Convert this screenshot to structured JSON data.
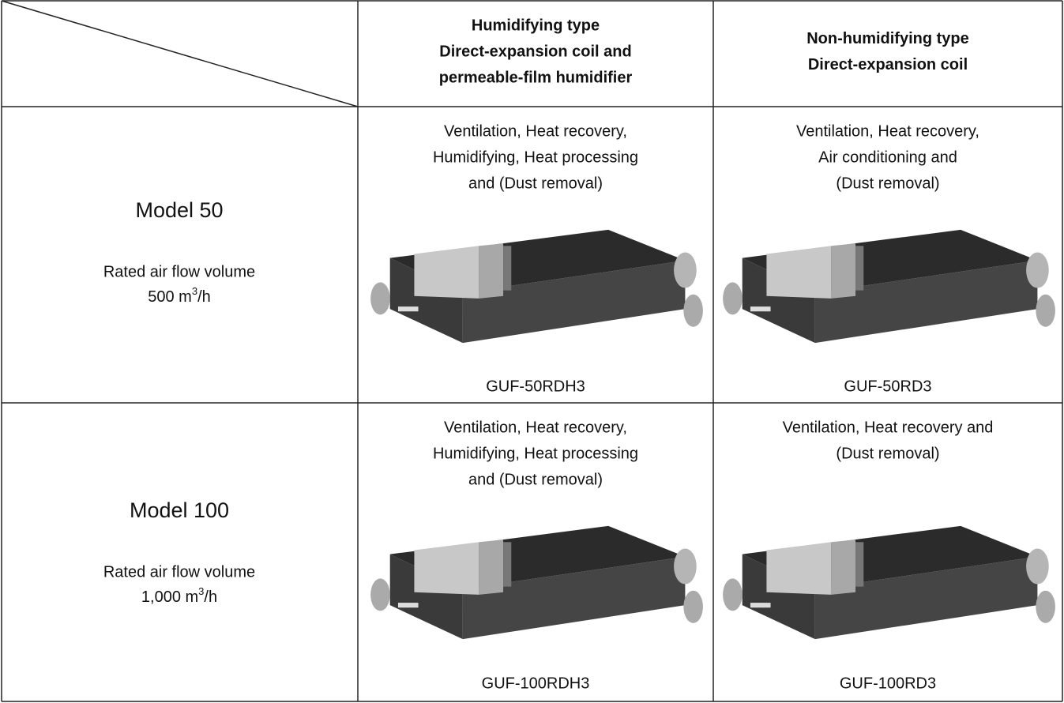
{
  "header": {
    "columns": [
      {
        "lines": [
          "Humidifying type",
          "Direct-expansion coil and",
          "permeable-film humidifier"
        ]
      },
      {
        "lines": [
          "Non-humidifying type",
          "Direct-expansion coil"
        ]
      }
    ]
  },
  "rows": [
    {
      "model": "Model 50",
      "flow_label": "Rated air flow volume",
      "flow": {
        "number": "500 m",
        "sup": "3",
        "unit": "/h"
      },
      "cells": [
        {
          "lines": [
            "Ventilation, Heat recovery,",
            "Humidifying, Heat processing",
            "and (Dust removal)"
          ],
          "product": "GUF-50RDH3"
        },
        {
          "lines": [
            "Ventilation, Heat recovery,",
            "Air conditioning and",
            "(Dust removal)"
          ],
          "product": "GUF-50RD3"
        }
      ]
    },
    {
      "model": "Model 100",
      "flow_label": "Rated air flow volume",
      "flow": {
        "number": "1,000 m",
        "sup": "3",
        "unit": "/h"
      },
      "cells": [
        {
          "lines": [
            "Ventilation, Heat recovery,",
            "Humidifying, Heat processing",
            "and (Dust removal)"
          ],
          "product": "GUF-100RDH3"
        },
        {
          "lines": [
            "Ventilation, Heat recovery and",
            "(Dust removal)"
          ],
          "product": "GUF-100RD3"
        }
      ]
    }
  ]
}
